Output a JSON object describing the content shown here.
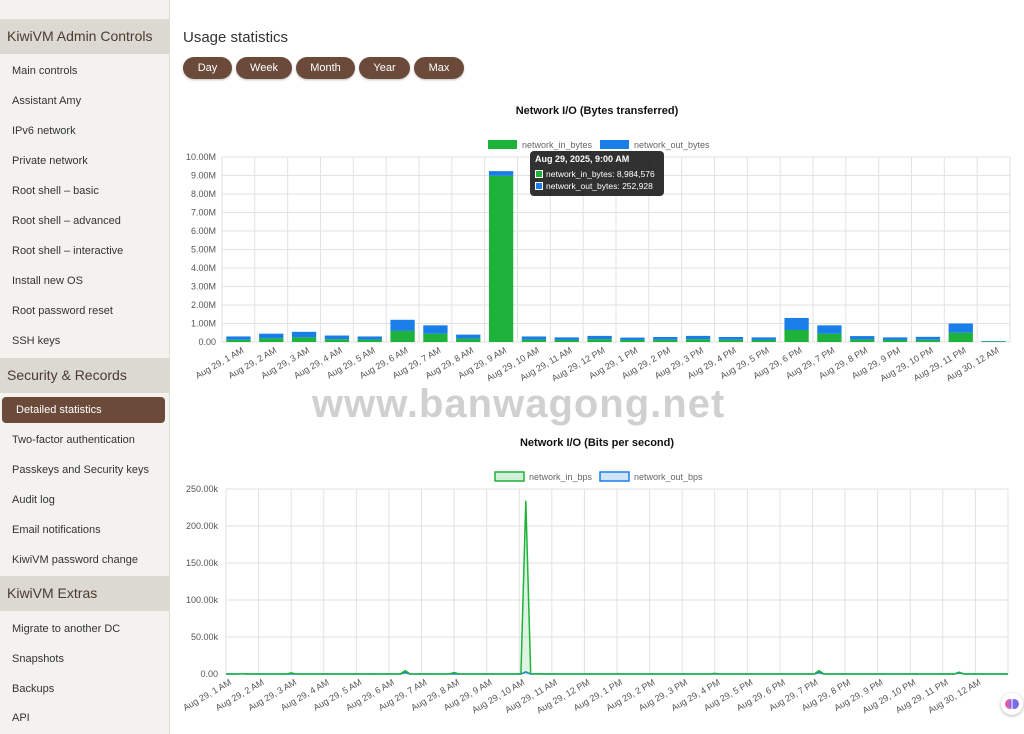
{
  "sidebar": {
    "sections": [
      {
        "title": "KiwiVM Admin Controls",
        "items": [
          "Main controls",
          "Assistant Amy",
          "IPv6 network",
          "Private network",
          "Root shell – basic",
          "Root shell – advanced",
          "Root shell – interactive",
          "Install new OS",
          "Root password reset",
          "SSH keys"
        ]
      },
      {
        "title": "Security & Records",
        "items": [
          "Detailed statistics",
          "Two-factor authentication",
          "Passkeys and Security keys",
          "Audit log",
          "Email notifications",
          "KiwiVM password change"
        ]
      },
      {
        "title": "KiwiVM Extras",
        "items": [
          "Migrate to another DC",
          "Snapshots",
          "Backups",
          "API"
        ]
      }
    ],
    "active_item": "Detailed statistics"
  },
  "main": {
    "title": "Usage statistics",
    "range_buttons": [
      "Day",
      "Week",
      "Month",
      "Year",
      "Max"
    ]
  },
  "watermark": "www.banwagong.net",
  "tooltip": {
    "title": "Aug 29, 2025, 9:00 AM",
    "in_label": "network_in_bytes: 8,984,576",
    "out_label": "network_out_bytes: 252,928"
  },
  "colors": {
    "in": "#1db33a",
    "out": "#1a7ee8",
    "button": "#6b4a3a"
  },
  "chart_data": [
    {
      "type": "bar",
      "title": "Network I/O (Bytes transferred)",
      "stacked": true,
      "categories": [
        "Aug 29, 1 AM",
        "Aug 29, 2 AM",
        "Aug 29, 3 AM",
        "Aug 29, 4 AM",
        "Aug 29, 5 AM",
        "Aug 29, 6 AM",
        "Aug 29, 7 AM",
        "Aug 29, 8 AM",
        "Aug 29, 9 AM",
        "Aug 29, 10 AM",
        "Aug 29, 11 AM",
        "Aug 29, 12 PM",
        "Aug 29, 1 PM",
        "Aug 29, 2 PM",
        "Aug 29, 3 PM",
        "Aug 29, 4 PM",
        "Aug 29, 5 PM",
        "Aug 29, 6 PM",
        "Aug 29, 7 PM",
        "Aug 29, 8 PM",
        "Aug 29, 9 PM",
        "Aug 29, 10 PM",
        "Aug 29, 11 PM",
        "Aug 30, 12 AM"
      ],
      "series": [
        {
          "name": "network_in_bytes",
          "values": [
            120000,
            200000,
            250000,
            150000,
            130000,
            600000,
            450000,
            180000,
            8984576,
            130000,
            110000,
            150000,
            110000,
            120000,
            150000,
            120000,
            110000,
            650000,
            450000,
            140000,
            110000,
            120000,
            500000,
            30000
          ]
        },
        {
          "name": "network_out_bytes",
          "values": [
            180000,
            250000,
            300000,
            200000,
            170000,
            600000,
            450000,
            220000,
            252928,
            170000,
            140000,
            180000,
            130000,
            150000,
            180000,
            150000,
            140000,
            650000,
            450000,
            180000,
            140000,
            160000,
            500000,
            20000
          ]
        }
      ],
      "ylim": [
        0,
        10000000
      ],
      "yticks": [
        "0.00",
        "1.00M",
        "2.00M",
        "3.00M",
        "4.00M",
        "5.00M",
        "6.00M",
        "7.00M",
        "8.00M",
        "9.00M",
        "10.00M"
      ],
      "legend": "top-center",
      "grid": true
    },
    {
      "type": "line",
      "title": "Network I/O (Bits per second)",
      "x_labels": [
        "Aug 29, 1 AM",
        "Aug 29, 2 AM",
        "Aug 29, 3 AM",
        "Aug 29, 4 AM",
        "Aug 29, 5 AM",
        "Aug 29, 6 AM",
        "Aug 29, 7 AM",
        "Aug 29, 8 AM",
        "Aug 29, 9 AM",
        "Aug 29, 10 AM",
        "Aug 29, 11 AM",
        "Aug 29, 12 PM",
        "Aug 29, 1 PM",
        "Aug 29, 2 PM",
        "Aug 29, 3 PM",
        "Aug 29, 4 PM",
        "Aug 29, 5 PM",
        "Aug 29, 6 PM",
        "Aug 29, 7 PM",
        "Aug 29, 8 PM",
        "Aug 29, 9 PM",
        "Aug 29, 10 PM",
        "Aug 29, 11 PM",
        "Aug 30, 12 AM"
      ],
      "series": [
        {
          "name": "network_in_bps",
          "values": [
            [
              0.5,
              500
            ],
            [
              2.0,
              1500
            ],
            [
              4.5,
              200
            ],
            [
              5.5,
              4500
            ],
            [
              7.0,
              2000
            ],
            [
              9.2,
              234000
            ],
            [
              9.6,
              600
            ],
            [
              12.0,
              600
            ],
            [
              15.0,
              800
            ],
            [
              18.2,
              4500
            ],
            [
              22.5,
              2500
            ]
          ]
        },
        {
          "name": "network_out_bps",
          "values": [
            [
              0.5,
              300
            ],
            [
              5.5,
              2000
            ],
            [
              9.2,
              3000
            ],
            [
              18.2,
              2000
            ],
            [
              22.5,
              1500
            ]
          ]
        }
      ],
      "ylim": [
        0,
        250000
      ],
      "yticks": [
        "0.00",
        "50.00k",
        "100.00k",
        "150.00k",
        "200.00k",
        "250.00k"
      ],
      "legend": "top-center",
      "grid": true
    }
  ]
}
